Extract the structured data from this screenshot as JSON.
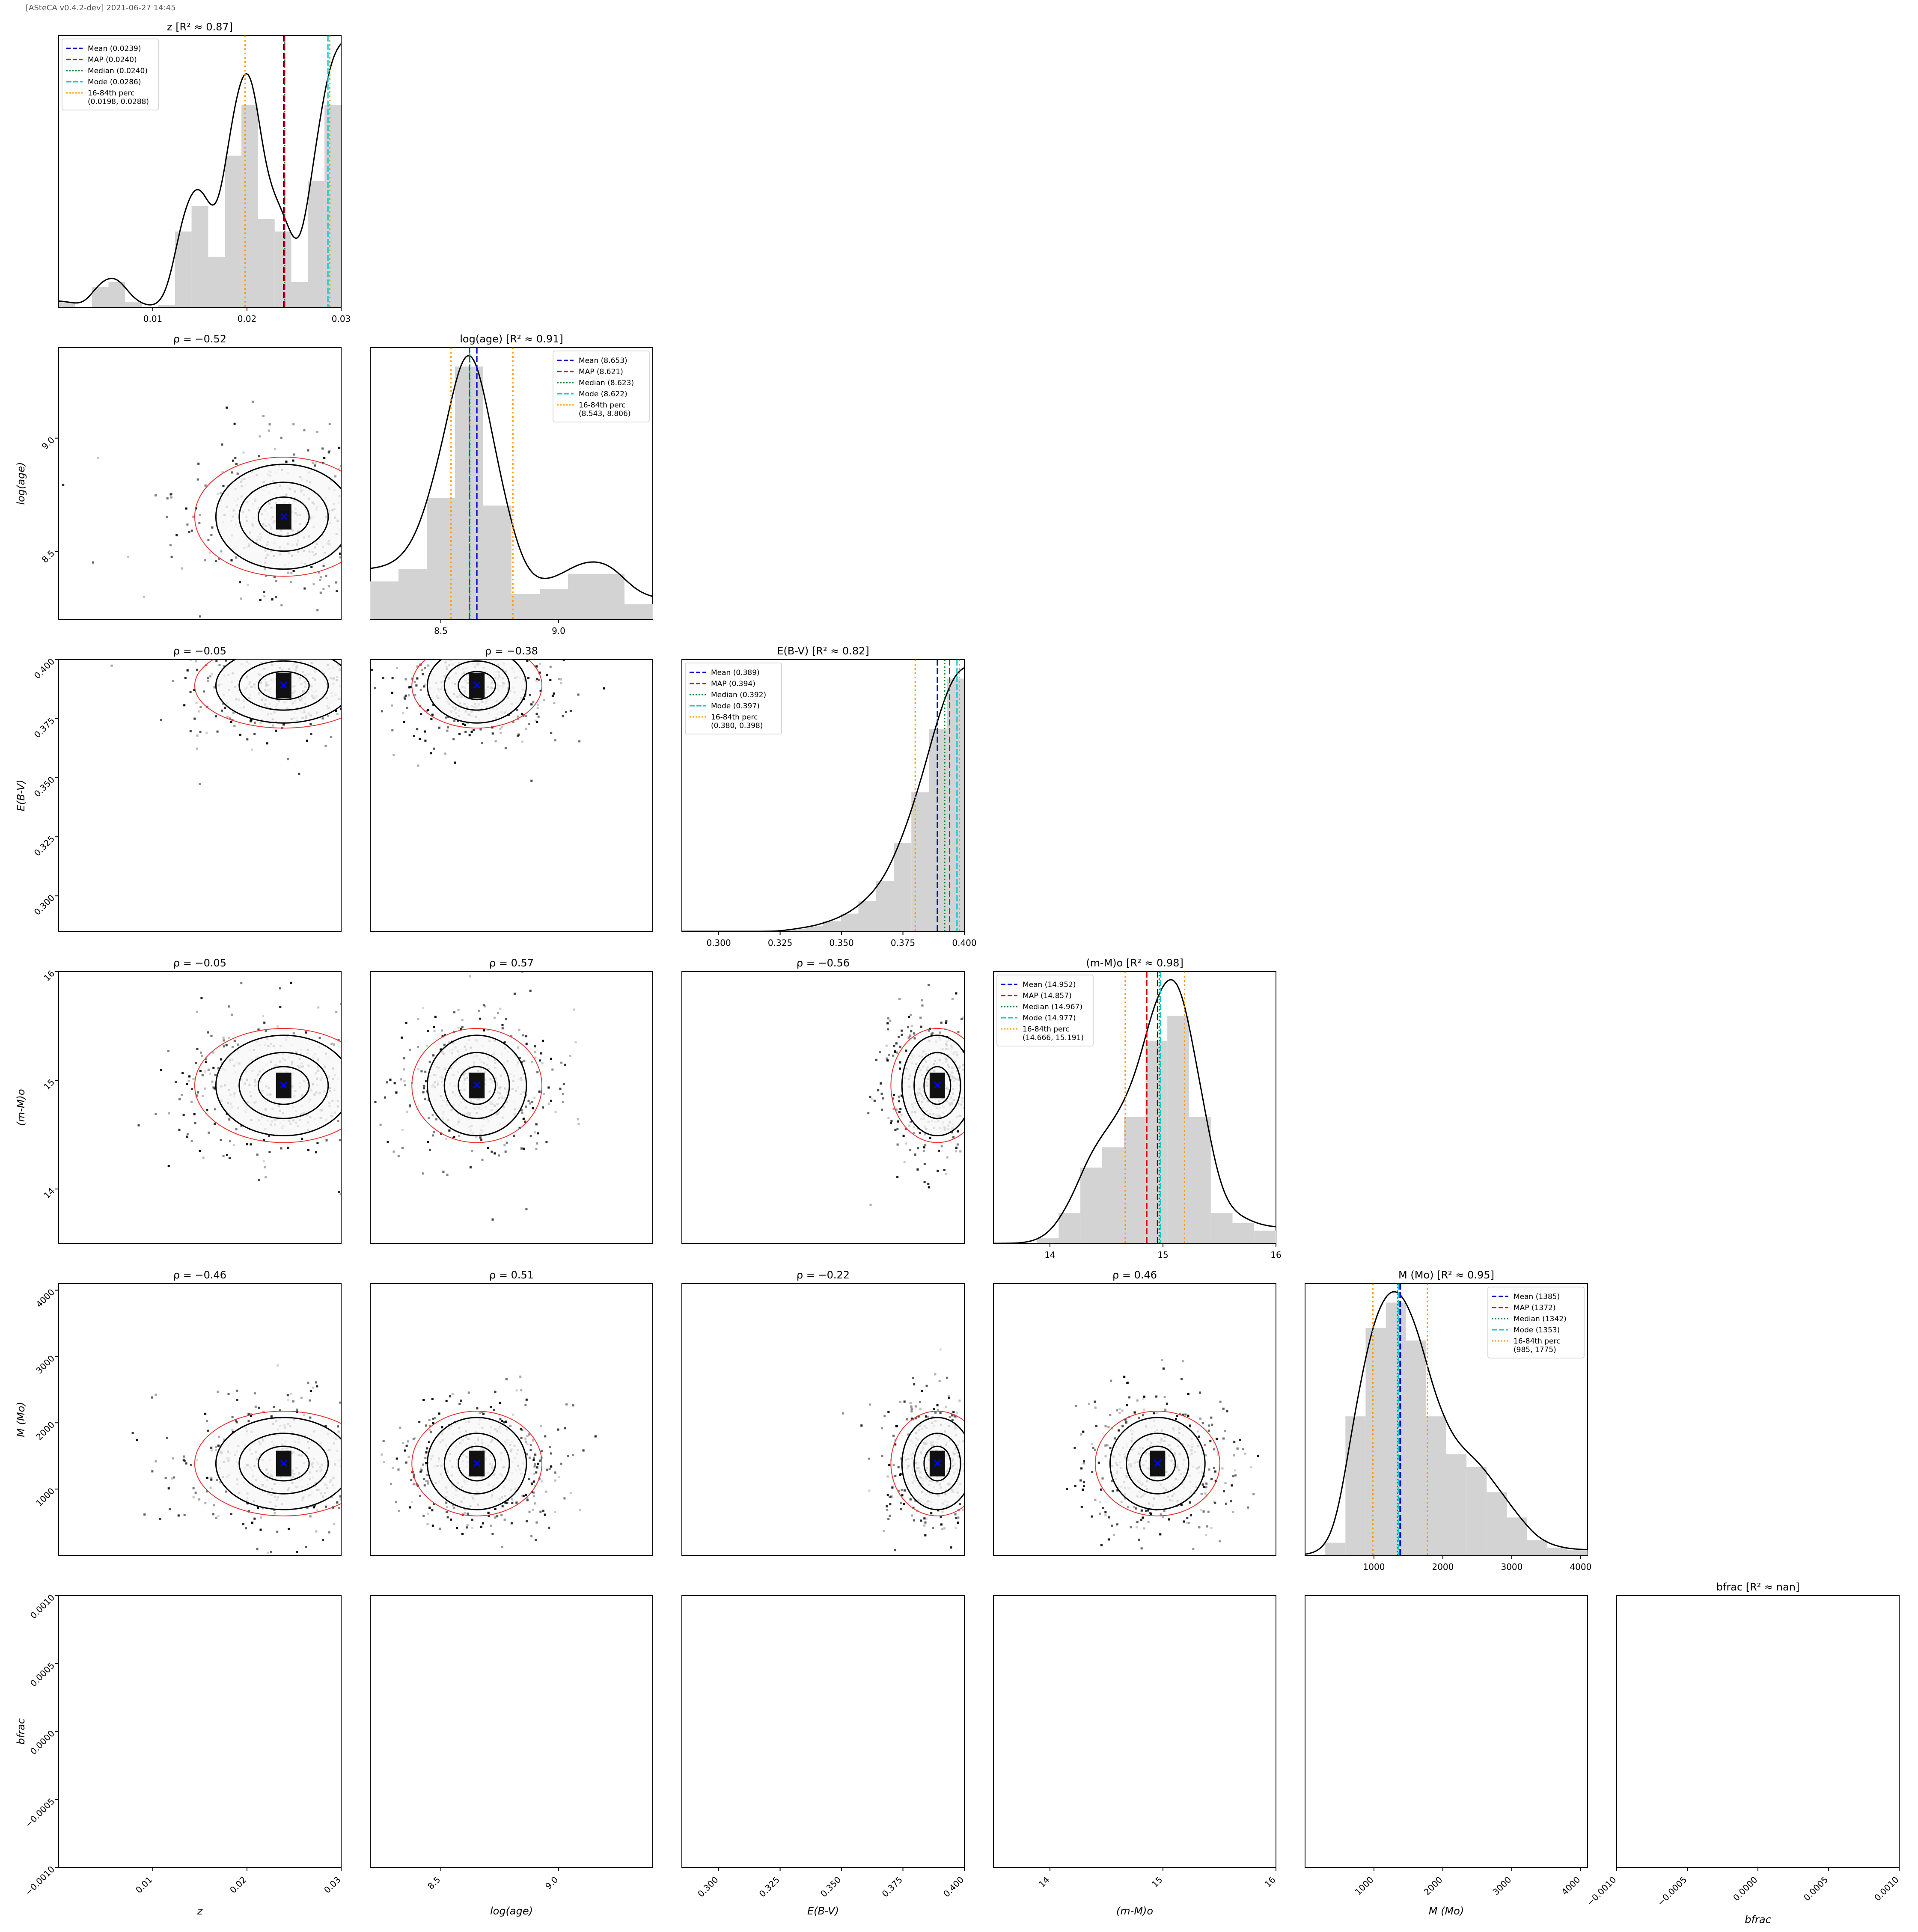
{
  "header_text": "[ASteCA v0.4.2-dev] 2021-06-27 14:45",
  "colors": {
    "mean": "#0000cc",
    "map": "#dd0000",
    "median": "#008833",
    "mode": "#00cccc",
    "perc": "#ff9900",
    "hist": "#d3d3d3",
    "ellipse": "#e33",
    "kde": "#000000",
    "best": "#0000ff"
  },
  "chart_data": {
    "type": "corner",
    "parameters": [
      {
        "key": "z",
        "axis_label": "z",
        "title": "z [R² ≈ 0.87]",
        "range": [
          0.0,
          0.03
        ],
        "ticks": [
          0.01,
          0.02,
          0.03
        ],
        "tick_labels": [
          "0.01",
          "0.02",
          "0.03"
        ],
        "legend": [
          "Mean (0.0239)",
          "MAP (0.0240)",
          "Median (0.0240)",
          "Mode (0.0286)",
          "16-84th perc",
          "(0.0198, 0.0288)"
        ],
        "legend_pos": "top-left",
        "stats": {
          "mean": 0.0239,
          "map": 0.024,
          "median": 0.024,
          "mode": 0.0286,
          "p16": 0.0198,
          "p84": 0.0288
        },
        "hist": [
          0.02,
          0.0,
          0.08,
          0.1,
          0.02,
          0.0,
          0.01,
          0.3,
          0.4,
          0.2,
          0.6,
          0.8,
          0.35,
          0.3,
          0.1,
          0.5,
          0.8
        ]
      },
      {
        "key": "age",
        "axis_label": "log(age)",
        "title": "log(age) [R² ≈ 0.91]",
        "range": [
          8.2,
          9.4
        ],
        "ticks": [
          8.5,
          9.0
        ],
        "tick_labels": [
          "8.5",
          "9.0"
        ],
        "legend": [
          "Mean (8.653)",
          "MAP (8.621)",
          "Median (8.623)",
          "Mode (8.622)",
          "16-84th perc",
          "(8.543, 8.806)"
        ],
        "legend_pos": "top-right",
        "stats": {
          "mean": 8.653,
          "map": 8.621,
          "median": 8.623,
          "mode": 8.622,
          "p16": 8.543,
          "p84": 8.806
        },
        "hist": [
          0.15,
          0.2,
          0.48,
          1.0,
          0.45,
          0.1,
          0.12,
          0.18,
          0.18,
          0.06
        ]
      },
      {
        "key": "ebv",
        "axis_label": "E(B-V)",
        "title": "E(B-V) [R² ≈ 0.82]",
        "range": [
          0.285,
          0.4
        ],
        "ticks": [
          0.3,
          0.325,
          0.35,
          0.375,
          0.4
        ],
        "tick_labels": [
          "0.300",
          "0.325",
          "0.350",
          "0.375",
          "0.400"
        ],
        "legend": [
          "Mean (0.389)",
          "MAP (0.394)",
          "Median (0.392)",
          "Mode (0.397)",
          "16-84th perc",
          "(0.380, 0.398)"
        ],
        "legend_pos": "top-left",
        "stats": {
          "mean": 0.389,
          "map": 0.394,
          "median": 0.392,
          "mode": 0.397,
          "p16": 0.38,
          "p84": 0.398
        },
        "hist": [
          0.0,
          0.0,
          0.0,
          0.0,
          0.0,
          0.0,
          0.01,
          0.02,
          0.04,
          0.07,
          0.12,
          0.2,
          0.35,
          0.55,
          0.8,
          1.0
        ]
      },
      {
        "key": "dm",
        "axis_label": "(m-M)o",
        "title": "(m-M)o [R² ≈ 0.98]",
        "range": [
          13.5,
          16.0
        ],
        "ticks": [
          14,
          15,
          16
        ],
        "tick_labels": [
          "14",
          "15",
          "16"
        ],
        "legend": [
          "Mean (14.952)",
          "MAP (14.857)",
          "Median (14.967)",
          "Mode (14.977)",
          "16-84th perc",
          "(14.666, 15.191)"
        ],
        "legend_pos": "top-left",
        "stats": {
          "mean": 14.952,
          "map": 14.857,
          "median": 14.967,
          "mode": 14.977,
          "p16": 14.666,
          "p84": 15.191
        },
        "hist": [
          0.0,
          0.0,
          0.02,
          0.12,
          0.3,
          0.38,
          0.5,
          0.8,
          0.9,
          0.5,
          0.12,
          0.08,
          0.05
        ]
      },
      {
        "key": "mass",
        "axis_label": "M (Mo)",
        "title": "M (Mo) [R² ≈ 0.95]",
        "range": [
          0,
          4100
        ],
        "ticks": [
          1000,
          2000,
          3000,
          4000
        ],
        "tick_labels": [
          "1000",
          "2000",
          "3000",
          "4000"
        ],
        "legend": [
          "Mean (1385)",
          "MAP (1372)",
          "Median (1342)",
          "Mode (1353)",
          "16-84th perc",
          "(985, 1775)"
        ],
        "legend_pos": "top-right",
        "stats": {
          "mean": 1385,
          "map": 1372,
          "median": 1342,
          "mode": 1353,
          "p16": 985,
          "p84": 1775
        },
        "hist": [
          0.0,
          0.05,
          0.55,
          0.9,
          1.0,
          0.85,
          0.55,
          0.4,
          0.35,
          0.25,
          0.15,
          0.06,
          0.03,
          0.02
        ]
      },
      {
        "key": "bfr",
        "axis_label": "bfrac",
        "title": "bfrac [R² ≈ nan]",
        "range": [
          -0.001,
          0.001
        ],
        "ticks": [
          -0.001,
          -0.0005,
          0.0,
          0.0005,
          0.001
        ],
        "tick_labels": [
          "−0.0010",
          "−0.0005",
          "0.0000",
          "0.0005",
          "0.0010"
        ],
        "legend": [],
        "legend_pos": "",
        "stats": null,
        "hist": []
      }
    ],
    "scatter_panels": [
      {
        "row": 1,
        "col": 0,
        "title": "ρ = −0.52"
      },
      {
        "row": 2,
        "col": 0,
        "title": "ρ = −0.05"
      },
      {
        "row": 2,
        "col": 1,
        "title": "ρ = −0.38"
      },
      {
        "row": 3,
        "col": 0,
        "title": "ρ = −0.05"
      },
      {
        "row": 3,
        "col": 1,
        "title": "ρ = 0.57"
      },
      {
        "row": 3,
        "col": 2,
        "title": "ρ = −0.56"
      },
      {
        "row": 4,
        "col": 0,
        "title": "ρ = −0.46"
      },
      {
        "row": 4,
        "col": 1,
        "title": "ρ = 0.51"
      },
      {
        "row": 4,
        "col": 2,
        "title": "ρ = −0.22"
      },
      {
        "row": 4,
        "col": 3,
        "title": "ρ = 0.46"
      },
      {
        "row": 5,
        "col": 0,
        "title": ""
      },
      {
        "row": 5,
        "col": 1,
        "title": ""
      },
      {
        "row": 5,
        "col": 2,
        "title": ""
      },
      {
        "row": 5,
        "col": 3,
        "title": ""
      },
      {
        "row": 5,
        "col": 4,
        "title": ""
      }
    ]
  }
}
